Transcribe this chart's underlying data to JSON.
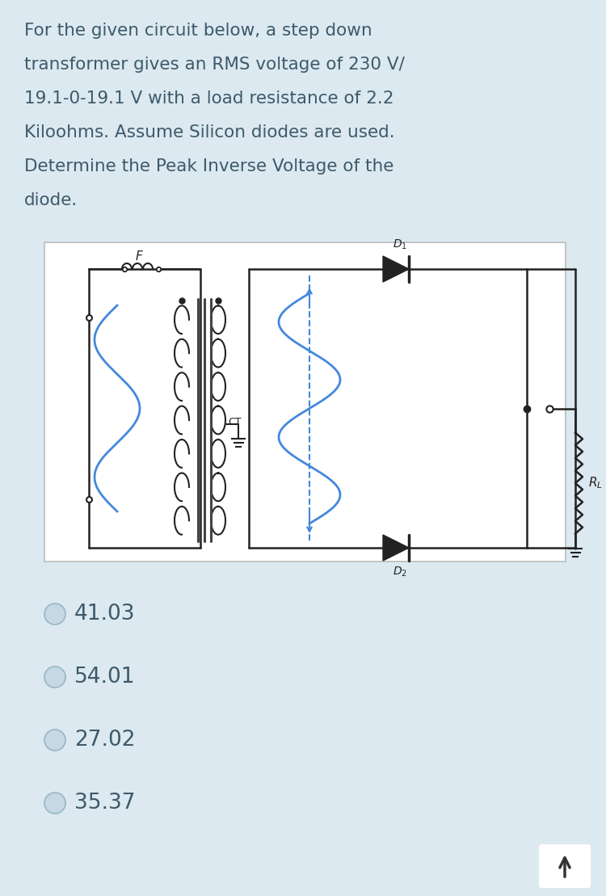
{
  "bg_color": "#dce9f0",
  "text_color": "#3d5a6b",
  "question_lines": [
    "For the given circuit below, a step down",
    "transformer gives an RMS voltage of 230 V/",
    "19.1-0-19.1 V with a load resistance of 2.2",
    "Kiloohms. Assume Silicon diodes are used.",
    "Determine the Peak Inverse Voltage of the",
    "diode."
  ],
  "circuit_bg": "#ffffff",
  "options": [
    "41.03",
    "54.01",
    "27.02",
    "35.37"
  ],
  "option_text_color": "#3d5a6b",
  "circuit_line_color": "#222222",
  "signal_color": "#4488dd",
  "ct_dashed_color": "#4488dd"
}
